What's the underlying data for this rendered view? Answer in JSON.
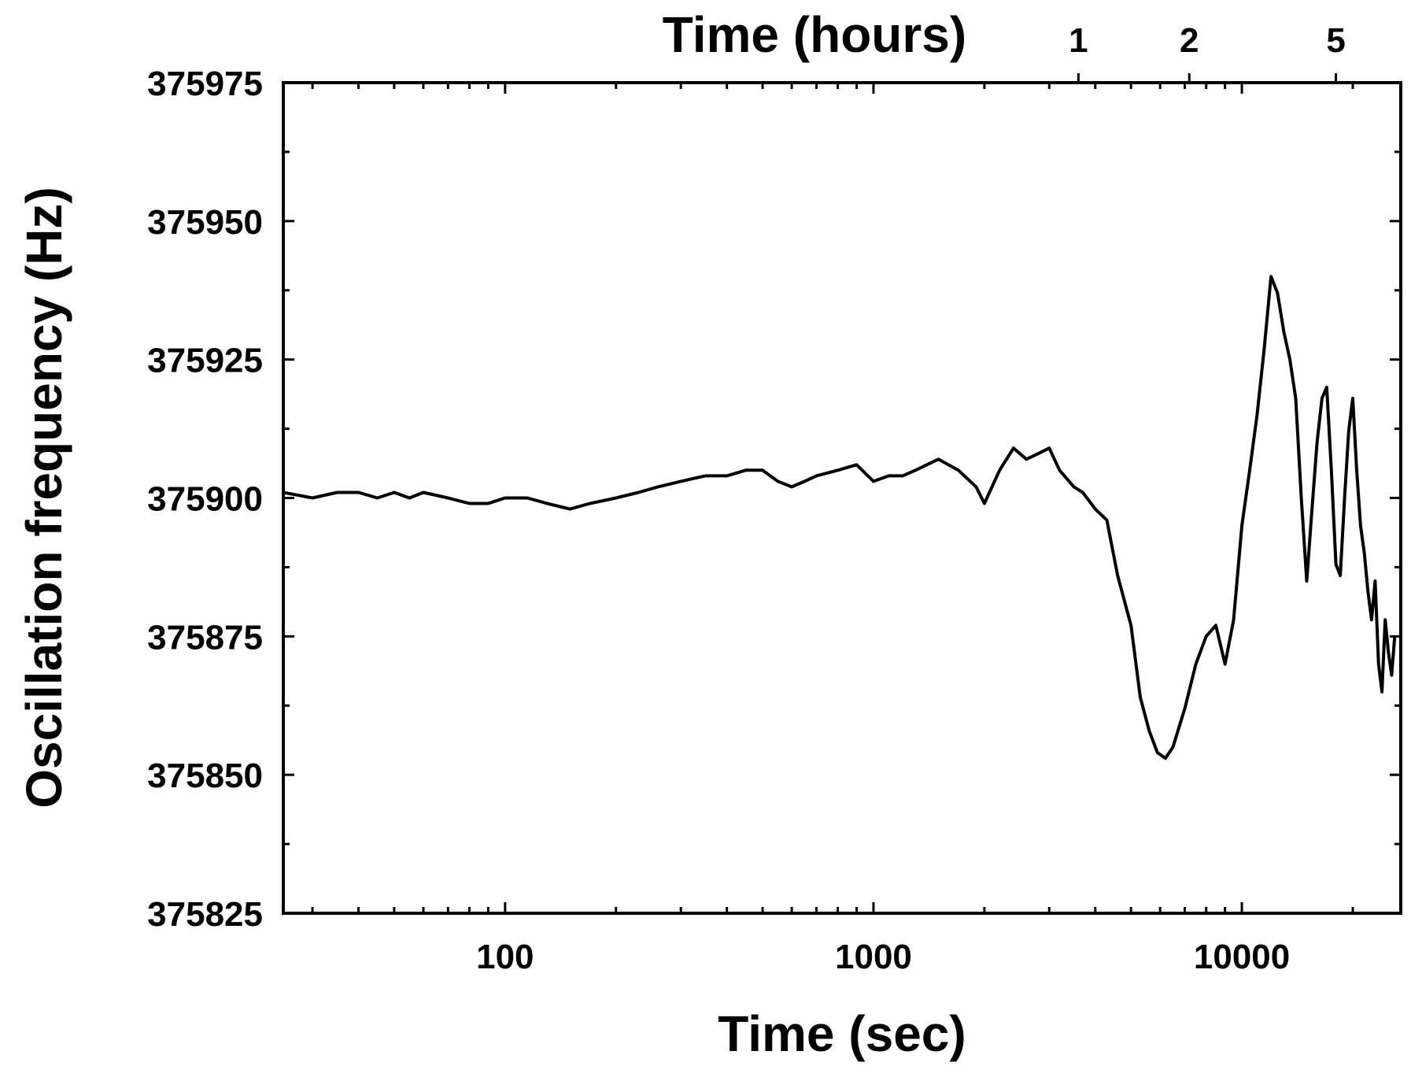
{
  "chart_data": {
    "type": "line",
    "title": "",
    "xlabel": "Time (sec)",
    "ylabel": "Oscillation frequency (Hz)",
    "top_xlabel": "Time (hours)",
    "x_scale": "log",
    "xlim": [
      25,
      27000
    ],
    "ylim": [
      375825,
      375975
    ],
    "x_ticks": [
      100,
      1000,
      10000
    ],
    "x_tick_labels": [
      "100",
      "1000",
      "10000"
    ],
    "y_ticks": [
      375825,
      375850,
      375875,
      375900,
      375925,
      375950,
      375975
    ],
    "y_tick_labels": [
      "375825",
      "375850",
      "375875",
      "375900",
      "375925",
      "375950",
      "375975"
    ],
    "top_ticks_hours": [
      1,
      2,
      5
    ],
    "top_tick_labels": [
      "1",
      "2",
      "5"
    ],
    "grid": false,
    "line_color": "#000000",
    "series": [
      {
        "x": [
          25,
          30,
          35,
          40,
          45,
          50,
          55,
          60,
          70,
          80,
          90,
          100,
          115,
          130,
          150,
          170,
          200,
          230,
          260,
          300,
          350,
          400,
          450,
          500,
          550,
          600,
          650,
          700,
          800,
          900,
          1000,
          1100,
          1200,
          1300,
          1500,
          1700,
          1900,
          2000,
          2200,
          2400,
          2600,
          2800,
          3000,
          3200,
          3500,
          3700,
          4000,
          4300,
          4600,
          5000,
          5300,
          5600,
          5900,
          6200,
          6500,
          7000,
          7500,
          8000,
          8500,
          9000,
          9500,
          10000,
          10500,
          11000,
          11500,
          12000,
          12500,
          13000,
          13500,
          14000,
          14500,
          15000,
          15500,
          16000,
          16500,
          17000,
          17500,
          18000,
          18500,
          19000,
          19500,
          20000,
          20500,
          21000,
          21500,
          22000,
          22500,
          23000,
          23500,
          24000,
          24500,
          25000,
          25500,
          26000
        ],
        "y": [
          375901,
          375900,
          375901,
          375901,
          375900,
          375901,
          375900,
          375901,
          375900,
          375899,
          375899,
          375900,
          375900,
          375899,
          375898,
          375899,
          375900,
          375901,
          375902,
          375903,
          375904,
          375904,
          375905,
          375905,
          375903,
          375902,
          375903,
          375904,
          375905,
          375906,
          375903,
          375904,
          375904,
          375905,
          375907,
          375905,
          375902,
          375899,
          375905,
          375909,
          375907,
          375908,
          375909,
          375905,
          375902,
          375901,
          375898,
          375896,
          375886,
          375877,
          375864,
          375858,
          375854,
          375853,
          375855,
          375862,
          375870,
          375875,
          375877,
          375870,
          375878,
          375895,
          375905,
          375915,
          375927,
          375940,
          375937,
          375930,
          375925,
          375918,
          375900,
          375885,
          375898,
          375910,
          375918,
          375920,
          375905,
          375888,
          375886,
          375900,
          375912,
          375918,
          375905,
          375895,
          375890,
          375883,
          375878,
          375885,
          375870,
          375865,
          375878,
          375872,
          375868,
          375875
        ]
      }
    ]
  }
}
